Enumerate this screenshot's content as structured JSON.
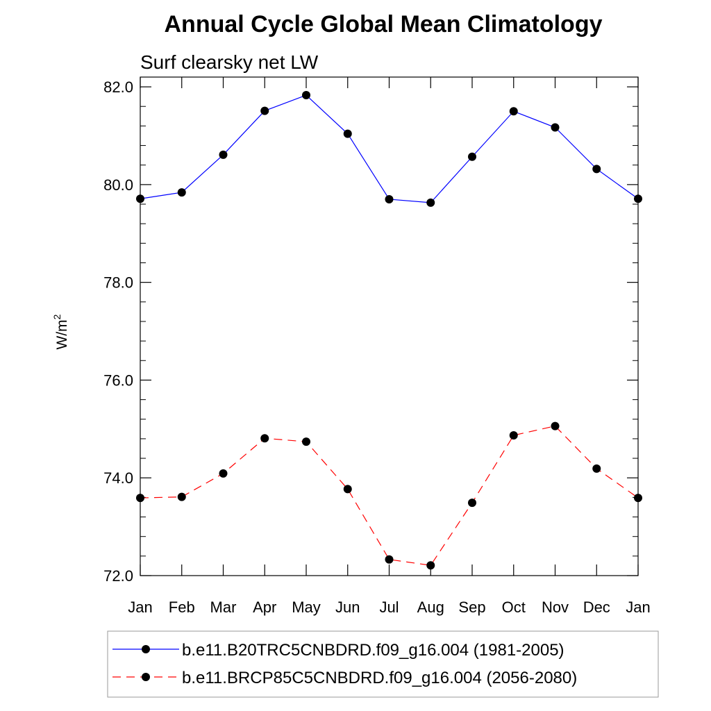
{
  "chart_data": {
    "type": "line",
    "title": "Annual Cycle Global Mean Climatology",
    "subtitle": "Surf clearsky net LW",
    "xlabel": "",
    "ylabel": "W/m",
    "ylabel_superscript": "2",
    "categories": [
      "Jan",
      "Feb",
      "Mar",
      "Apr",
      "May",
      "Jun",
      "Jul",
      "Aug",
      "Sep",
      "Oct",
      "Nov",
      "Dec",
      "Jan"
    ],
    "ylim": [
      72.0,
      82.2
    ],
    "yticks": [
      72.0,
      74.0,
      76.0,
      78.0,
      80.0,
      82.0
    ],
    "ytick_labels": [
      "72.0",
      "74.0",
      "76.0",
      "78.0",
      "80.0",
      "82.0"
    ],
    "grid": false,
    "legend_position": "bottom",
    "series": [
      {
        "name": "b.e11.B20TRC5CNBDRD.f09_g16.004 (1981-2005)",
        "color": "#0000ff",
        "dash": "solid",
        "values": [
          79.71,
          79.84,
          80.61,
          81.51,
          81.83,
          81.04,
          79.7,
          79.63,
          80.57,
          81.5,
          81.17,
          80.32,
          79.71
        ]
      },
      {
        "name": "b.e11.BRCP85C5CNBDRD.f09_g16.004 (2056-2080)",
        "color": "#ff0000",
        "dash": "dashed",
        "values": [
          73.59,
          73.61,
          74.09,
          74.81,
          74.74,
          73.77,
          72.33,
          72.21,
          73.49,
          74.87,
          75.06,
          74.19,
          73.59
        ]
      }
    ]
  }
}
